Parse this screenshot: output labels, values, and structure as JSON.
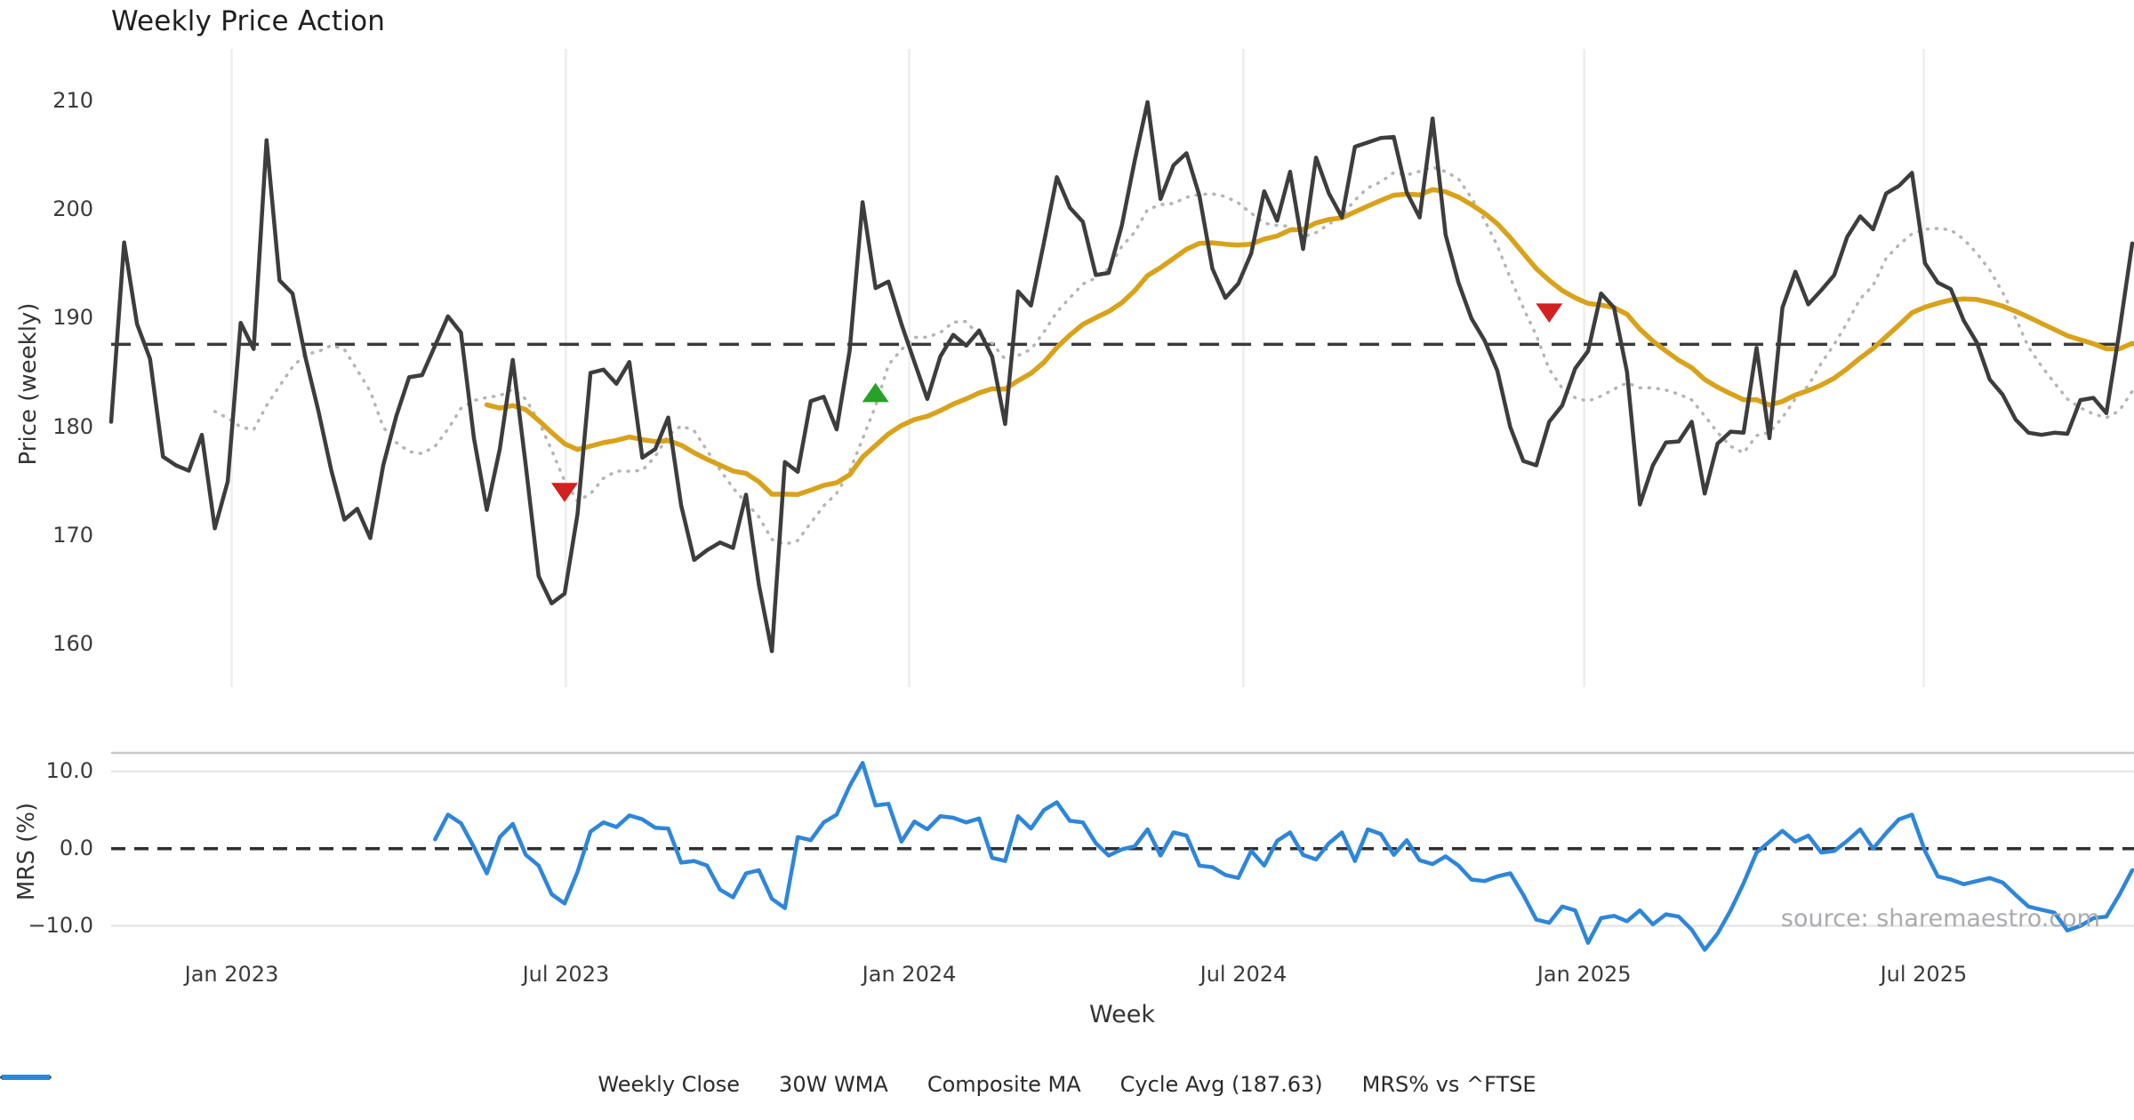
{
  "title": "Weekly Price Action",
  "source_note": "source: sharemaestro.com",
  "colors": {
    "weekly_close": "#3d3d3d",
    "wma": "#d9a21b",
    "composite": "#b5b5b5",
    "cycle_avg": "#3a3a3a",
    "mrs": "#2e86d9",
    "sell_marker": "#d32020",
    "buy_marker": "#27a127",
    "grid_vertical": "#ededed",
    "grid_horizontal": "#e8e8e8",
    "panel_spine": "#c9c9c9",
    "tick_text": "#3b3b3b"
  },
  "top_panel": {
    "y_axis_label": "Price (weekly)",
    "y_ticks": [
      210,
      200,
      190,
      180,
      170,
      160
    ],
    "ylim": [
      156.1,
      214.8
    ],
    "cycle_avg_value": 187.63
  },
  "bottom_panel": {
    "y_axis_label": "MRS (%)",
    "y_ticks": [
      {
        "label": "10.0",
        "value": 10
      },
      {
        "label": "0.0",
        "value": 0
      },
      {
        "label": "−10.0",
        "value": -10
      }
    ],
    "ylim": [
      -13.5,
      12.4
    ],
    "zero_line_value": 0
  },
  "x_axis": {
    "label": "Week",
    "ticks": [
      {
        "label": "Jan 2023",
        "week_index": 9.3
      },
      {
        "label": "Jul 2023",
        "week_index": 35.1
      },
      {
        "label": "Jan 2024",
        "week_index": 61.6
      },
      {
        "label": "Jul 2024",
        "week_index": 87.4
      },
      {
        "label": "Jan 2025",
        "week_index": 113.7
      },
      {
        "label": "Jul 2025",
        "week_index": 139.9
      }
    ]
  },
  "legend": [
    {
      "label": "Weekly Close",
      "swatch": "solid-dark"
    },
    {
      "label": "30W WMA",
      "swatch": "solid-gold"
    },
    {
      "label": "Composite MA",
      "swatch": "dotted-gray"
    },
    {
      "label": "Cycle Avg (187.63)",
      "swatch": "dashed-dark"
    },
    {
      "label": "MRS% vs ^FTSE",
      "swatch": "solid-blue"
    }
  ],
  "chart_data": {
    "type": "line",
    "panels": 2,
    "x_unit": "week_index",
    "n_weeks": 157,
    "series": [
      {
        "name": "Weekly Close",
        "panel": "top",
        "start_index": 0,
        "values": [
          180.5,
          197.0,
          189.5,
          186.3,
          177.3,
          176.5,
          176.0,
          179.3,
          170.7,
          175.0,
          189.6,
          187.2,
          206.4,
          193.5,
          192.3,
          186.4,
          181.5,
          176.0,
          171.5,
          172.5,
          169.8,
          176.5,
          181.0,
          184.6,
          184.8,
          187.5,
          190.2,
          188.7,
          179.0,
          172.4,
          178.0,
          186.2,
          176.5,
          166.3,
          163.8,
          164.7,
          172.0,
          185.0,
          185.3,
          184.0,
          186.0,
          177.2,
          178.0,
          180.9,
          172.8,
          167.8,
          168.7,
          169.4,
          168.9,
          173.8,
          165.5,
          159.4,
          176.8,
          175.9,
          182.4,
          182.8,
          179.8,
          187.0,
          200.7,
          192.8,
          193.4,
          189.5,
          186.0,
          182.6,
          186.5,
          188.5,
          187.5,
          188.9,
          186.5,
          180.3,
          192.5,
          191.2,
          197.0,
          203.0,
          200.2,
          198.9,
          194.0,
          194.2,
          198.5,
          204.5,
          209.9,
          201.0,
          204.1,
          205.2,
          201.3,
          194.6,
          191.9,
          193.2,
          196.0,
          201.7,
          199.0,
          203.5,
          196.4,
          204.8,
          201.5,
          199.3,
          205.8,
          206.2,
          206.6,
          206.7,
          201.6,
          199.3,
          208.4,
          197.7,
          193.3,
          190.0,
          188.0,
          185.2,
          180.0,
          176.9,
          176.5,
          180.5,
          182.0,
          185.4,
          187.0,
          192.3,
          191.0,
          185.1,
          172.9,
          176.5,
          178.6,
          178.7,
          180.5,
          173.9,
          178.5,
          179.6,
          179.5,
          187.3,
          179.0,
          191.0,
          194.3,
          191.3,
          192.6,
          194.0,
          197.5,
          199.4,
          198.2,
          201.5,
          202.2,
          203.4,
          195.1,
          193.3,
          192.7,
          189.8,
          187.8,
          184.4,
          183.0,
          180.7,
          179.5,
          179.3,
          179.5,
          179.4,
          182.5,
          182.7,
          181.3,
          188.7,
          196.9
        ]
      },
      {
        "name": "30W WMA",
        "panel": "top",
        "derived_from": "Weekly Close",
        "method": "weighted_moving_average",
        "window": 30
      },
      {
        "name": "Composite MA",
        "panel": "top",
        "derived_from": "Weekly Close",
        "method": "simple_moving_average",
        "window": 9
      },
      {
        "name": "Cycle Avg",
        "panel": "top",
        "method": "constant",
        "value": 187.63
      },
      {
        "name": "MRS% vs ^FTSE",
        "panel": "bottom",
        "start_index": 25,
        "values": [
          1.2,
          4.4,
          3.3,
          0.2,
          -3.2,
          1.5,
          3.2,
          -0.8,
          -2.2,
          -5.9,
          -7.1,
          -3.0,
          2.2,
          3.4,
          2.8,
          4.3,
          3.8,
          2.7,
          2.6,
          -1.8,
          -1.6,
          -2.2,
          -5.3,
          -6.3,
          -3.2,
          -2.8,
          -6.5,
          -7.7,
          1.5,
          1.1,
          3.4,
          4.4,
          8.1,
          11.1,
          5.6,
          5.8,
          0.9,
          3.5,
          2.5,
          4.2,
          4.0,
          3.4,
          3.9,
          -1.2,
          -1.6,
          4.2,
          2.6,
          5.0,
          6.0,
          3.6,
          3.4,
          0.7,
          -0.9,
          -0.1,
          0.3,
          2.5,
          -0.9,
          2.1,
          1.7,
          -2.2,
          -2.4,
          -3.4,
          -3.8,
          -0.3,
          -2.2,
          1.0,
          2.1,
          -0.8,
          -1.4,
          0.7,
          2.1,
          -1.6,
          2.5,
          1.9,
          -0.8,
          1.1,
          -1.5,
          -2.0,
          -1.0,
          -2.2,
          -4.0,
          -4.2,
          -3.6,
          -3.2,
          -6.0,
          -9.2,
          -9.6,
          -7.5,
          -8.0,
          -12.2,
          -9.0,
          -8.7,
          -9.4,
          -8.0,
          -9.8,
          -8.5,
          -8.8,
          -10.5,
          -13.1,
          -11.0,
          -8.0,
          -4.5,
          -0.5,
          0.9,
          2.3,
          0.9,
          1.7,
          -0.5,
          -0.3,
          1.0,
          2.5,
          0.0,
          2.0,
          3.8,
          4.4,
          -0.3,
          -3.6,
          -4.0,
          -4.6,
          -4.2,
          -3.8,
          -4.4,
          -6.0,
          -7.5,
          -7.9,
          -8.3,
          -10.6,
          -10.0,
          -9.0,
          -8.8,
          -6.0,
          -2.8
        ]
      }
    ],
    "markers": [
      {
        "type": "sell",
        "shape": "triangle-down",
        "week_index": 35,
        "value": 174.1
      },
      {
        "type": "buy",
        "shape": "triangle-up",
        "week_index": 59,
        "value": 183.1
      },
      {
        "type": "sell",
        "shape": "triangle-down",
        "week_index": 111,
        "value": 190.6
      }
    ],
    "legend_position": "bottom-center",
    "grid": {
      "top_panel": "vertical-month-lines",
      "bottom_panel": "horizontal-at-plus-minus-10"
    }
  }
}
